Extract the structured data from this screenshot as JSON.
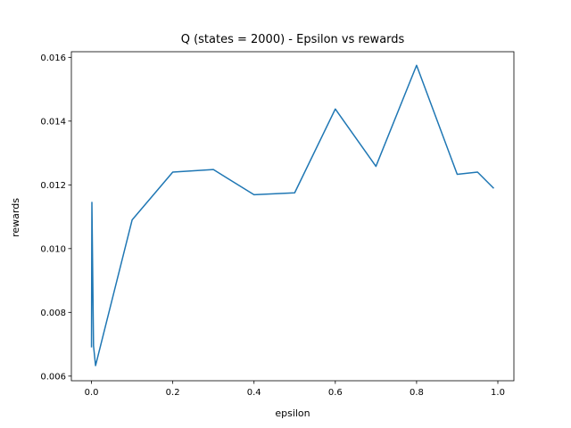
{
  "chart_data": {
    "type": "line",
    "title": "Q (states = 2000) - Epsilon vs rewards",
    "xlabel": "epsilon",
    "ylabel": "rewards",
    "xlim": [
      -0.0495,
      1.0395
    ],
    "ylim": [
      0.005855,
      0.016177
    ],
    "xticks": [
      0.0,
      0.2,
      0.4,
      0.6,
      0.8,
      1.0
    ],
    "xtick_labels": [
      "0.0",
      "0.2",
      "0.4",
      "0.6",
      "0.8",
      "1.0"
    ],
    "yticks": [
      0.006,
      0.008,
      0.01,
      0.012,
      0.014,
      0.016
    ],
    "ytick_labels": [
      "0.006",
      "0.008",
      "0.010",
      "0.012",
      "0.014",
      "0.016"
    ],
    "grid": false,
    "legend": "none",
    "series": [
      {
        "color": "#1f77b4",
        "x": [
          0.0,
          0.001,
          0.005,
          0.01,
          0.1,
          0.2,
          0.3,
          0.4,
          0.5,
          0.6,
          0.7,
          0.8,
          0.9,
          0.95,
          0.99
        ],
        "y": [
          0.0069,
          0.01145,
          0.00695,
          0.00633,
          0.0109,
          0.0124,
          0.01248,
          0.01169,
          0.01175,
          0.01438,
          0.01258,
          0.01575,
          0.01233,
          0.0124,
          0.01189
        ]
      }
    ]
  }
}
